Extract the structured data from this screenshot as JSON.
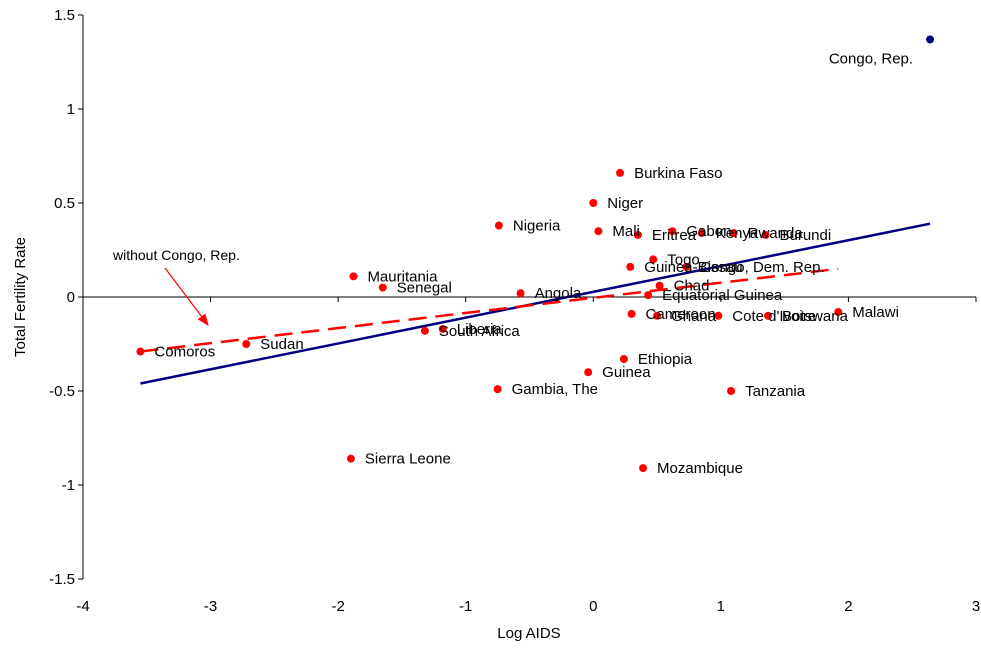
{
  "chart_data": {
    "type": "scatter",
    "xlabel": "Log AIDS",
    "ylabel": "Total Fertility Rate",
    "xlim": [
      -4,
      3
    ],
    "ylim": [
      -1.5,
      1.5
    ],
    "x_ticks": [
      "-4",
      "-3",
      "-2",
      "-1",
      "0",
      "1",
      "2",
      "3"
    ],
    "y_ticks": [
      "-1.5",
      "-1",
      "-0.5",
      "0",
      "0.5",
      "1",
      "1.5"
    ],
    "grid": false,
    "colors": {
      "points": "#ff0000",
      "outlier": "#000080",
      "fit_all": "#000080",
      "fit_without": "#ff0000"
    },
    "points": [
      {
        "label": "Comoros",
        "x": -3.55,
        "y": -0.29
      },
      {
        "label": "Sudan",
        "x": -2.72,
        "y": -0.25
      },
      {
        "label": "Mauritania",
        "x": -1.88,
        "y": 0.11
      },
      {
        "label": "Senegal",
        "x": -1.65,
        "y": 0.05
      },
      {
        "label": "Sierra Leone",
        "x": -1.9,
        "y": -0.86
      },
      {
        "label": "South Africa",
        "x": -1.32,
        "y": -0.18
      },
      {
        "label": "Liberia",
        "x": -1.18,
        "y": -0.17
      },
      {
        "label": "Nigeria",
        "x": -0.74,
        "y": 0.38
      },
      {
        "label": "Gambia, The",
        "x": -0.75,
        "y": -0.49
      },
      {
        "label": "Angola",
        "x": -0.57,
        "y": 0.02
      },
      {
        "label": "Burkina Faso",
        "x": 0.21,
        "y": 0.66
      },
      {
        "label": "Niger",
        "x": 0.0,
        "y": 0.5
      },
      {
        "label": "Mali",
        "x": 0.04,
        "y": 0.35
      },
      {
        "label": "Eritrea",
        "x": 0.35,
        "y": 0.33
      },
      {
        "label": "Gabon",
        "x": 0.62,
        "y": 0.35
      },
      {
        "label": "Kenya",
        "x": 0.85,
        "y": 0.34
      },
      {
        "label": "Rwanda",
        "x": 1.1,
        "y": 0.34
      },
      {
        "label": "Burundi",
        "x": 1.35,
        "y": 0.33
      },
      {
        "label": "Togo",
        "x": 0.47,
        "y": 0.2
      },
      {
        "label": "Guinea-Bissau",
        "x": 0.29,
        "y": 0.16
      },
      {
        "label": "Congo, Dem. Rep.",
        "x": 0.73,
        "y": 0.16
      },
      {
        "label": "Chad",
        "x": 0.52,
        "y": 0.06
      },
      {
        "label": "Equatorial Guinea",
        "x": 0.43,
        "y": 0.01
      },
      {
        "label": "Cameroon",
        "x": 0.3,
        "y": -0.09
      },
      {
        "label": "Ghana",
        "x": 0.5,
        "y": -0.1
      },
      {
        "label": "Cote d'Ivoire",
        "x": 0.98,
        "y": -0.1
      },
      {
        "label": "Botswana",
        "x": 1.37,
        "y": -0.1
      },
      {
        "label": "Malawi",
        "x": 1.92,
        "y": -0.08
      },
      {
        "label": "Ethiopia",
        "x": 0.24,
        "y": -0.33
      },
      {
        "label": "Guinea",
        "x": -0.04,
        "y": -0.4
      },
      {
        "label": "Tanzania",
        "x": 1.08,
        "y": -0.5
      },
      {
        "label": "Mozambique",
        "x": 0.39,
        "y": -0.91
      },
      {
        "label": "Congo, Rep.",
        "x": 2.64,
        "y": 1.37
      }
    ],
    "fit_lines": [
      {
        "style": "solid",
        "x": [
          -3.55,
          2.64
        ],
        "y": [
          -0.46,
          0.39
        ]
      },
      {
        "style": "dashed",
        "name": "without Congo, Rep.",
        "x": [
          -3.55,
          1.92
        ],
        "y": [
          -0.29,
          0.15
        ]
      }
    ],
    "annotation": "without Congo, Rep."
  }
}
